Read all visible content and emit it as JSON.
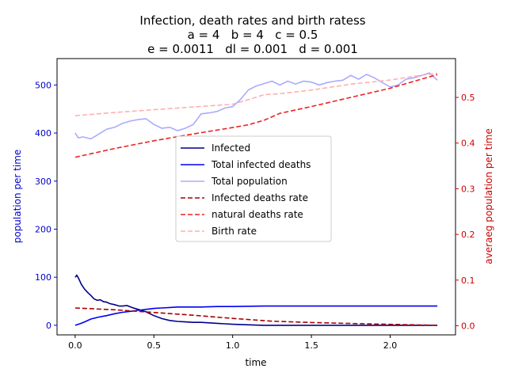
{
  "chart_data": {
    "type": "line",
    "title_lines": [
      "Infection, death rates and birth ratess",
      "a = 4   b = 4   c = 0.5",
      "e = 0.0011   dl = 0.001   d = 0.001"
    ],
    "xlabel": "time",
    "ylabel_left": "population per time",
    "ylabel_right": "averaeg population per time",
    "xlim": [
      -0.115,
      2.415
    ],
    "ylim_left": [
      -20,
      555
    ],
    "ylim_right": [
      -0.02,
      0.585
    ],
    "x_ticks": [
      0.0,
      0.5,
      1.0,
      1.5,
      2.0
    ],
    "x_tick_labels": [
      "0.0",
      "0.5",
      "1.0",
      "1.5",
      "2.0"
    ],
    "y_left_ticks": [
      0,
      100,
      200,
      300,
      400,
      500
    ],
    "y_left_tick_labels": [
      "0",
      "100",
      "200",
      "300",
      "400",
      "500"
    ],
    "y_right_ticks": [
      0.0,
      0.1,
      0.2,
      0.3,
      0.4,
      0.5
    ],
    "y_right_tick_labels": [
      "0.0",
      "0.1",
      "0.2",
      "0.3",
      "0.4",
      "0.5"
    ],
    "legend_position": "center",
    "series": [
      {
        "name": "Infected",
        "axis": "left",
        "color": "#00008b",
        "style": "solid",
        "x": [
          0.0,
          0.01,
          0.02,
          0.04,
          0.06,
          0.08,
          0.1,
          0.12,
          0.14,
          0.16,
          0.18,
          0.2,
          0.22,
          0.25,
          0.28,
          0.3,
          0.33,
          0.36,
          0.4,
          0.45,
          0.5,
          0.55,
          0.6,
          0.65,
          0.7,
          0.75,
          0.8,
          0.85,
          0.9,
          0.95,
          1.0,
          1.1,
          1.2,
          1.4,
          1.6,
          1.8,
          2.0,
          2.2,
          2.3
        ],
        "y": [
          100,
          104,
          99,
          85,
          75,
          68,
          62,
          55,
          52,
          53,
          49,
          48,
          45,
          43,
          40,
          40,
          41,
          37,
          33,
          28,
          20,
          14,
          10,
          8,
          7,
          6,
          6,
          5,
          4,
          3,
          2,
          1,
          0,
          0,
          0,
          0,
          0,
          0,
          0
        ]
      },
      {
        "name": "Total infected deaths",
        "axis": "left",
        "color": "#0000ee",
        "style": "solid",
        "x": [
          0.0,
          0.03,
          0.06,
          0.1,
          0.15,
          0.2,
          0.25,
          0.3,
          0.35,
          0.4,
          0.45,
          0.5,
          0.55,
          0.6,
          0.65,
          0.7,
          0.8,
          0.9,
          1.0,
          1.2,
          1.5,
          2.0,
          2.3
        ],
        "y": [
          0,
          3,
          7,
          13,
          17,
          20,
          24,
          27,
          29,
          31,
          33,
          35,
          36,
          37,
          38,
          38,
          38,
          39,
          39,
          40,
          40,
          40,
          40
        ]
      },
      {
        "name": "Total population",
        "axis": "left",
        "color": "#aaaaff",
        "style": "solid",
        "x": [
          0.0,
          0.02,
          0.05,
          0.1,
          0.15,
          0.2,
          0.25,
          0.3,
          0.35,
          0.4,
          0.45,
          0.5,
          0.55,
          0.6,
          0.65,
          0.7,
          0.75,
          0.8,
          0.85,
          0.9,
          0.95,
          1.0,
          1.05,
          1.1,
          1.15,
          1.2,
          1.25,
          1.3,
          1.35,
          1.4,
          1.45,
          1.5,
          1.55,
          1.6,
          1.65,
          1.7,
          1.75,
          1.8,
          1.85,
          1.9,
          1.95,
          2.0,
          2.05,
          2.1,
          2.15,
          2.2,
          2.25,
          2.3
        ],
        "y": [
          400,
          390,
          392,
          388,
          398,
          408,
          412,
          420,
          425,
          428,
          430,
          418,
          410,
          412,
          405,
          410,
          418,
          440,
          442,
          445,
          452,
          455,
          470,
          490,
          498,
          503,
          508,
          500,
          508,
          502,
          508,
          506,
          500,
          505,
          508,
          510,
          520,
          512,
          522,
          515,
          505,
          496,
          500,
          512,
          515,
          520,
          525,
          510
        ]
      },
      {
        "name": "Infected deaths rate",
        "axis": "right",
        "color": "#aa0000",
        "style": "dashed",
        "x": [
          0.0,
          0.25,
          0.5,
          0.75,
          1.0,
          1.25,
          1.5,
          1.75,
          2.0,
          2.15,
          2.3
        ],
        "y": [
          0.039,
          0.035,
          0.029,
          0.023,
          0.016,
          0.01,
          0.007,
          0.005,
          0.003,
          0.002,
          0.001
        ]
      },
      {
        "name": "natural deaths rate",
        "axis": "right",
        "color": "#ee2222",
        "style": "dashed",
        "x": [
          0.0,
          0.25,
          0.5,
          0.75,
          1.0,
          1.1,
          1.2,
          1.3,
          1.5,
          1.75,
          2.0,
          2.15,
          2.3
        ],
        "y": [
          0.369,
          0.388,
          0.405,
          0.42,
          0.434,
          0.44,
          0.45,
          0.465,
          0.48,
          0.5,
          0.52,
          0.535,
          0.55
        ]
      },
      {
        "name": "Birth rate",
        "axis": "right",
        "color": "#ffb0b0",
        "style": "dashed",
        "x": [
          0.0,
          0.25,
          0.5,
          0.75,
          1.0,
          1.1,
          1.2,
          1.3,
          1.5,
          1.75,
          2.0,
          2.15,
          2.3
        ],
        "y": [
          0.46,
          0.467,
          0.473,
          0.479,
          0.485,
          0.495,
          0.506,
          0.508,
          0.516,
          0.529,
          0.538,
          0.546,
          0.553
        ]
      }
    ]
  }
}
